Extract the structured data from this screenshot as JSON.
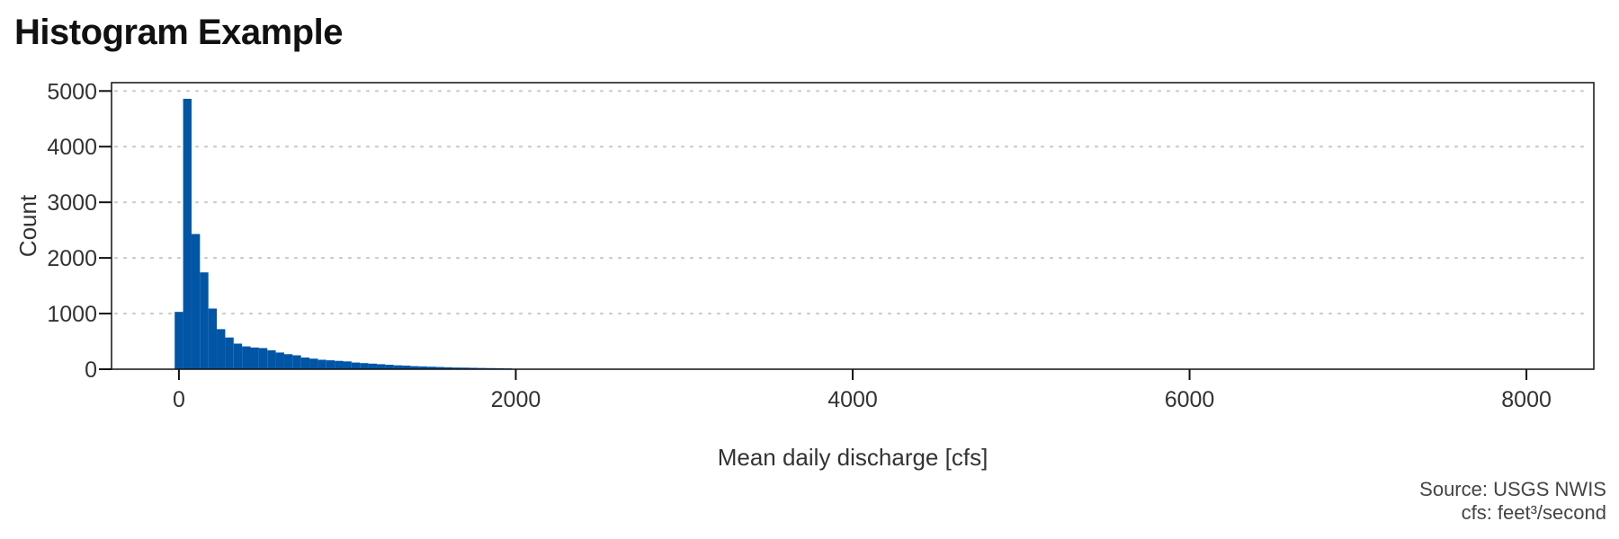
{
  "chart_data": {
    "type": "bar",
    "title": "Histogram Example",
    "xlabel": "Mean daily discharge [cfs]",
    "ylabel": "Count",
    "xlim": [
      -400,
      8400
    ],
    "ylim": [
      0,
      5150
    ],
    "xticks": [
      0,
      2000,
      4000,
      6000,
      8000
    ],
    "yticks": [
      0,
      1000,
      2000,
      3000,
      4000,
      5000
    ],
    "grid": "horizontal-dotted",
    "bar_color": "#0055a5",
    "bin_width": 50,
    "bins_start": -25,
    "values": [
      1030,
      4860,
      2430,
      1740,
      1090,
      720,
      570,
      460,
      410,
      390,
      380,
      340,
      300,
      270,
      250,
      210,
      190,
      170,
      160,
      150,
      140,
      120,
      110,
      100,
      90,
      80,
      70,
      65,
      55,
      50,
      45,
      40,
      35,
      30,
      28,
      25,
      22,
      20,
      18,
      15
    ]
  },
  "caption": {
    "source": "Source: USGS NWIS",
    "units": "cfs: feet³/second"
  }
}
